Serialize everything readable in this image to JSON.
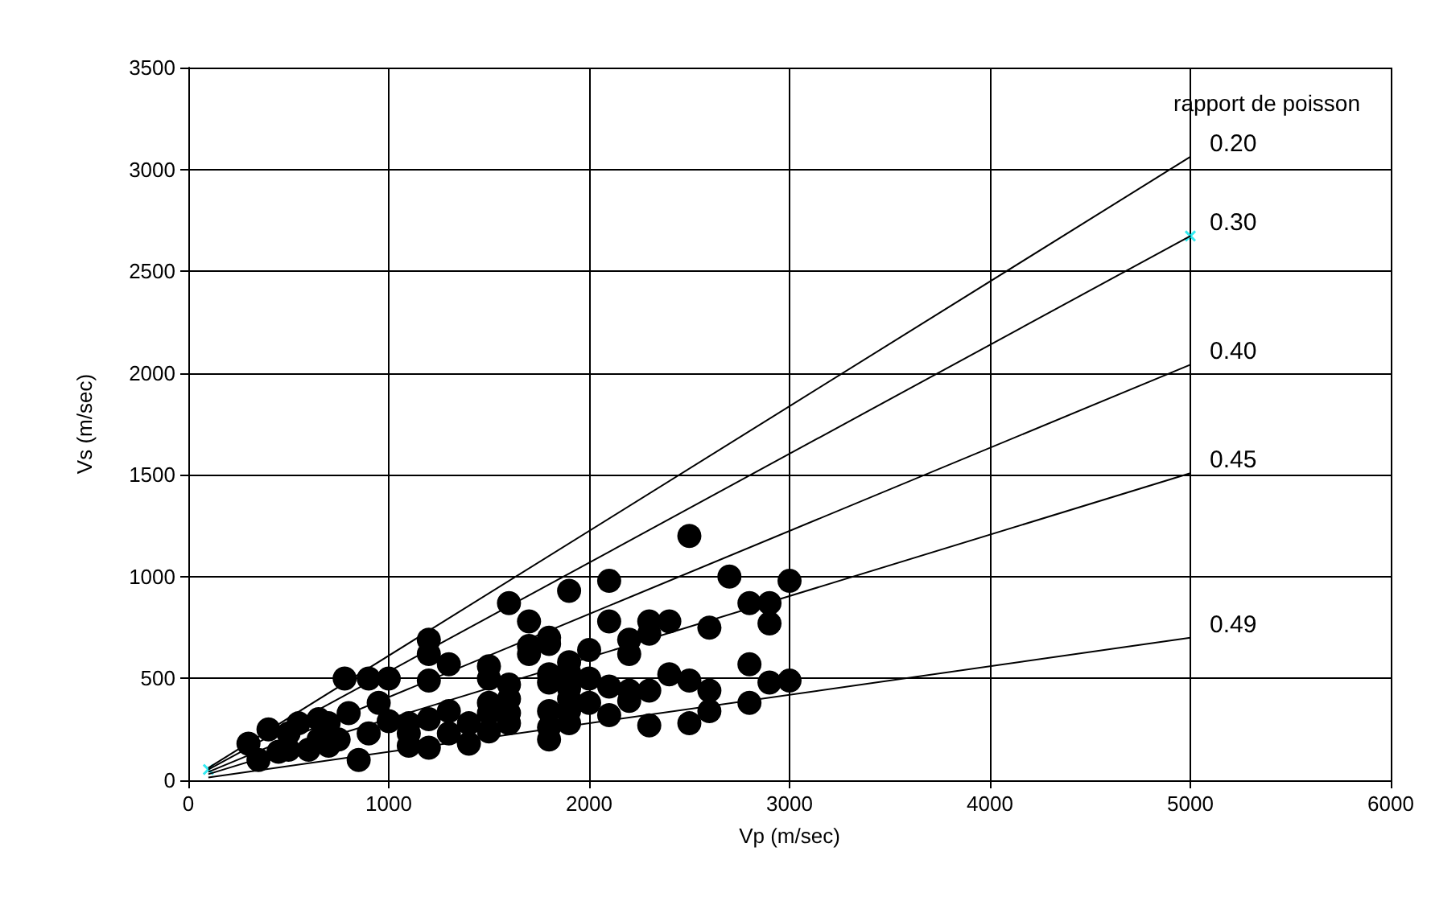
{
  "chart_data": {
    "type": "scatter",
    "xlabel": "Vp (m/sec)",
    "ylabel": "Vs (m/sec)",
    "legend_title": "rapport de poisson",
    "xlim": [
      0,
      6000
    ],
    "xticks": [
      0,
      1000,
      2000,
      3000,
      4000,
      5000,
      6000
    ],
    "ylim": [
      0,
      3500
    ],
    "yticks": [
      0,
      500,
      1000,
      1500,
      2000,
      2500,
      3000,
      3500
    ],
    "grid": true,
    "legend": false,
    "series": [
      {
        "name": "0.20",
        "type": "line",
        "marker": "none",
        "color": "#000000",
        "x": [
          100,
          5000
        ],
        "values": [
          61,
          3062
        ]
      },
      {
        "name": "0.30",
        "type": "line",
        "marker": "none",
        "color": "#000000",
        "x": [
          100,
          5000
        ],
        "values": [
          53,
          2673
        ]
      },
      {
        "name": "0.40",
        "type": "line",
        "marker": "none",
        "color": "#000000",
        "x": [
          100,
          5000
        ],
        "values": [
          41,
          2041
        ]
      },
      {
        "name": "0.45",
        "type": "line",
        "marker": "none",
        "color": "#000000",
        "x": [
          100,
          5000
        ],
        "values": [
          30,
          1508
        ]
      },
      {
        "name": "0.49",
        "type": "line",
        "marker": "none",
        "color": "#000000",
        "x": [
          100,
          5000
        ],
        "values": [
          14,
          700
        ]
      },
      {
        "type": "scatter",
        "marker": "cross",
        "color": "#00e5ee",
        "x": [
          100,
          5000
        ],
        "values": [
          53,
          2673
        ]
      },
      {
        "marker": "circle",
        "color": "#000000",
        "x": [
          300,
          350,
          400,
          450,
          500,
          500,
          550,
          600,
          650,
          650,
          700,
          700,
          750,
          780,
          800,
          850,
          900,
          900,
          950,
          1000,
          1000,
          1100,
          1100,
          1100,
          1200,
          1200,
          1200,
          1200,
          1200,
          1300,
          1300,
          1300,
          1400,
          1400,
          1500,
          1500,
          1500,
          1500,
          1500,
          1600,
          1600,
          1600,
          1600,
          1600,
          1700,
          1700,
          1700,
          1800,
          1800,
          1800,
          1800,
          1800,
          1800,
          1800,
          1900,
          1900,
          1900,
          1900,
          1900,
          1900,
          1900,
          2000,
          2000,
          2000,
          2100,
          2100,
          2100,
          2100,
          2200,
          2200,
          2200,
          2200,
          2300,
          2300,
          2300,
          2300,
          2400,
          2400,
          2500,
          2500,
          2500,
          2600,
          2600,
          2600,
          2700,
          2800,
          2800,
          2800,
          2900,
          2900,
          2900,
          3000,
          3000
        ],
        "values": [
          180,
          100,
          250,
          140,
          150,
          230,
          280,
          150,
          200,
          300,
          170,
          280,
          200,
          500,
          330,
          100,
          230,
          500,
          380,
          500,
          290,
          280,
          170,
          230,
          690,
          620,
          490,
          300,
          160,
          570,
          340,
          230,
          180,
          280,
          560,
          500,
          380,
          330,
          240,
          870,
          470,
          400,
          280,
          330,
          780,
          660,
          620,
          700,
          670,
          520,
          480,
          340,
          260,
          200,
          930,
          580,
          530,
          450,
          400,
          340,
          280,
          640,
          500,
          380,
          980,
          780,
          460,
          320,
          690,
          620,
          440,
          390,
          780,
          720,
          270,
          440,
          780,
          520,
          1200,
          490,
          280,
          750,
          440,
          340,
          1000,
          870,
          570,
          380,
          870,
          770,
          480,
          980,
          490
        ]
      }
    ]
  }
}
